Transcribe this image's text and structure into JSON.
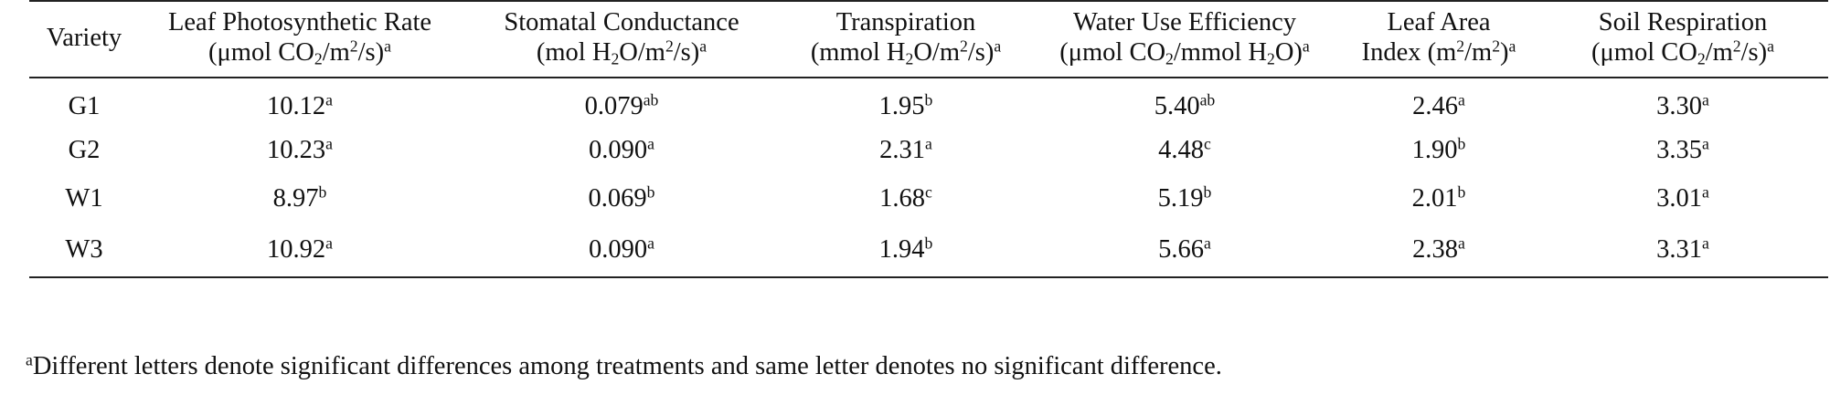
{
  "table": {
    "headers": {
      "variety": "Variety",
      "photo_line1": "Leaf Photosynthetic Rate",
      "photo_unit_a": "(μmol CO",
      "photo_unit_b": "/m",
      "photo_unit_c": "/s)",
      "stomatal_line1": "Stomatal Conductance",
      "stomatal_unit_a": "(mol H",
      "stomatal_unit_b": "O/m",
      "stomatal_unit_c": "/s)",
      "transp_line1": "Transpiration",
      "transp_unit_a": "(mmol H",
      "transp_unit_b": "O/m",
      "transp_unit_c": "/s)",
      "wue_line1": "Water Use Efficiency",
      "wue_unit_a": "(μmol CO",
      "wue_unit_b": "/mmol H",
      "wue_unit_c": "O)",
      "lai_line1": "Leaf Area",
      "lai_unit_a": "Index (m",
      "lai_unit_b": "/m",
      "lai_unit_c": ")",
      "soil_line1": "Soil Respiration",
      "soil_unit_a": "(μmol CO",
      "soil_unit_b": "/m",
      "soil_unit_c": "/s)",
      "sub_2": "2",
      "sup_2": "2",
      "sup_a": "a"
    },
    "rows": [
      {
        "variety": "G1",
        "photo": "10.12",
        "photo_sup": "a",
        "stomatal": "0.079",
        "stomatal_sup": "ab",
        "transp": "1.95",
        "transp_sup": "b",
        "wue": "5.40",
        "wue_sup": "ab",
        "lai": "2.46",
        "lai_sup": "a",
        "soil": "3.30",
        "soil_sup": "a"
      },
      {
        "variety": "G2",
        "photo": "10.23",
        "photo_sup": "a",
        "stomatal": "0.090",
        "stomatal_sup": "a",
        "transp": "2.31",
        "transp_sup": "a",
        "wue": "4.48",
        "wue_sup": "c",
        "lai": "1.90",
        "lai_sup": "b",
        "soil": "3.35",
        "soil_sup": "a"
      },
      {
        "variety": "W1",
        "photo": "8.97",
        "photo_sup": "b",
        "stomatal": "0.069",
        "stomatal_sup": "b",
        "transp": "1.68",
        "transp_sup": "c",
        "wue": "5.19",
        "wue_sup": "b",
        "lai": "2.01",
        "lai_sup": "b",
        "soil": "3.01",
        "soil_sup": "a"
      },
      {
        "variety": "W3",
        "photo": "10.92",
        "photo_sup": "a",
        "stomatal": "0.090",
        "stomatal_sup": "a",
        "transp": "1.94",
        "transp_sup": "b",
        "wue": "5.66",
        "wue_sup": "a",
        "lai": "2.38",
        "lai_sup": "a",
        "soil": "3.31",
        "soil_sup": "a"
      }
    ]
  },
  "footnote": {
    "marker": "a",
    "text": "Different letters denote significant differences among treatments and same letter denotes no significant difference."
  }
}
